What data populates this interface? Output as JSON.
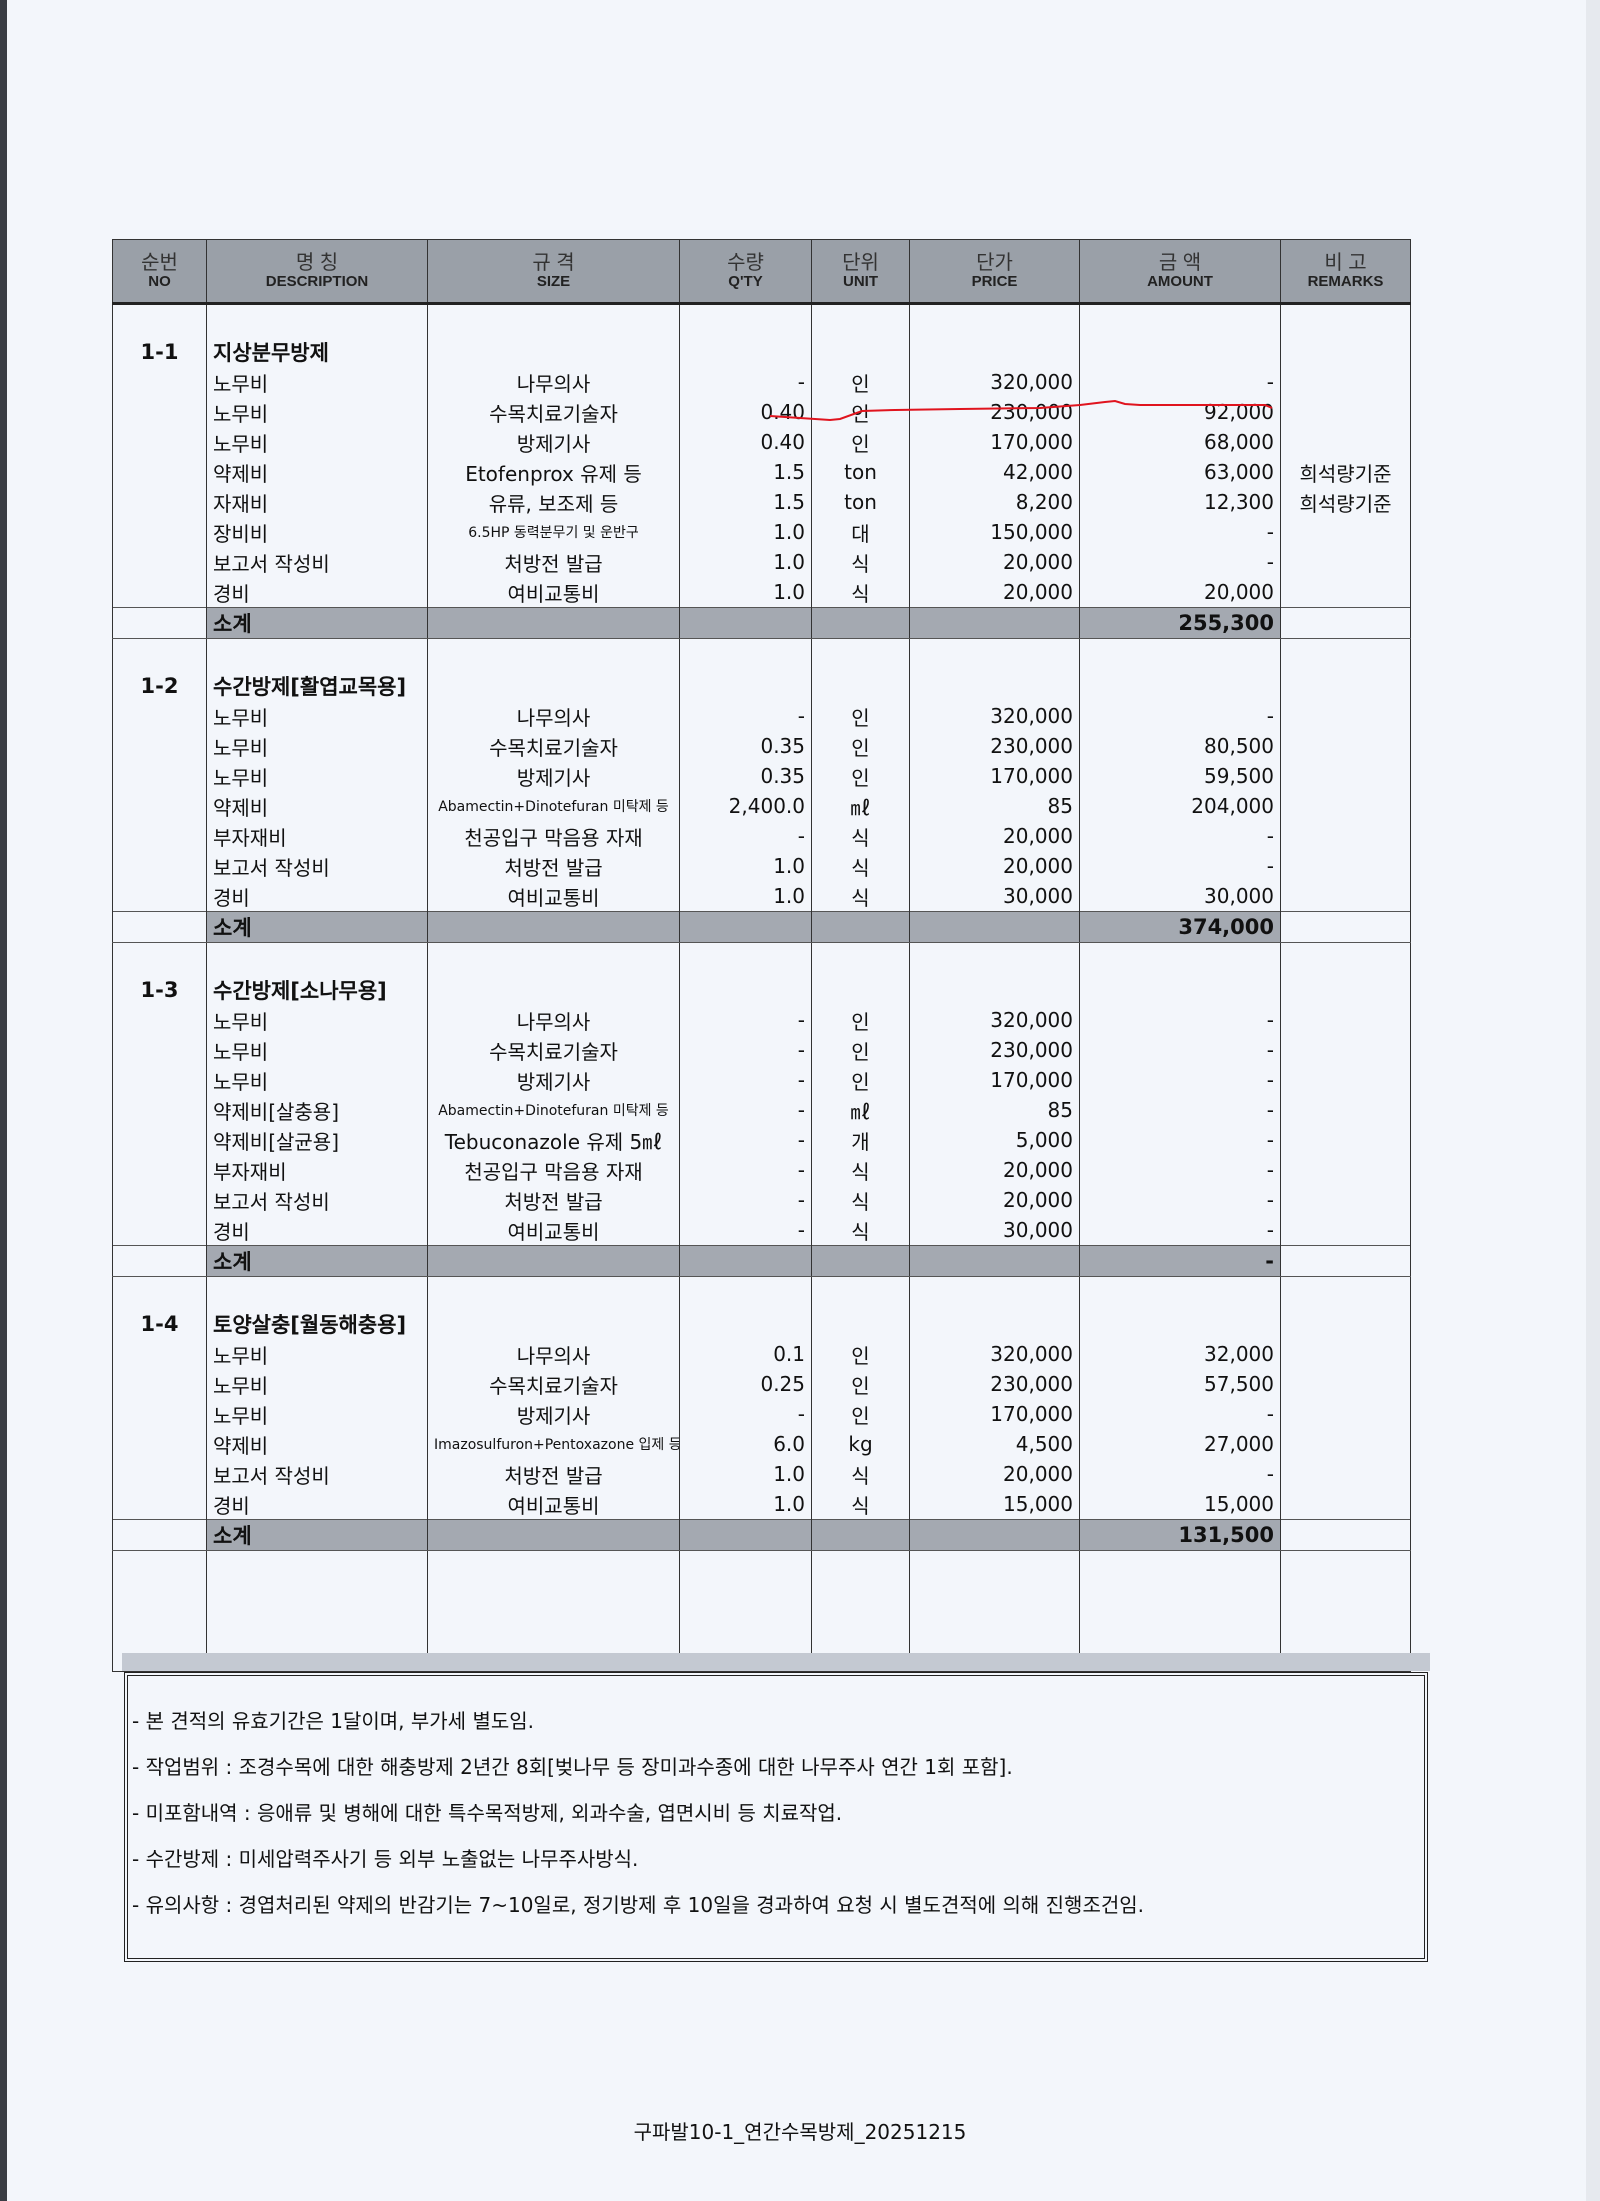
{
  "header": {
    "cols": [
      {
        "ko": "순번",
        "en": "NO"
      },
      {
        "ko": "명 칭",
        "en": "DESCRIPTION"
      },
      {
        "ko": "규 격",
        "en": "SIZE"
      },
      {
        "ko": "수량",
        "en": "Q'TY"
      },
      {
        "ko": "단위",
        "en": "UNIT"
      },
      {
        "ko": "단가",
        "en": "PRICE"
      },
      {
        "ko": "금 액",
        "en": "AMOUNT"
      },
      {
        "ko": "비 고",
        "en": "REMARKS"
      }
    ]
  },
  "sections": [
    {
      "no": "1-1",
      "title": "지상분무방제",
      "subtotal_label": "소계",
      "subtotal": "255,300",
      "items": [
        {
          "desc": "노무비",
          "size": "나무의사",
          "qty": "-",
          "unit": "인",
          "price": "320,000",
          "amount": "-",
          "remark": ""
        },
        {
          "desc": "노무비",
          "size": "수목치료기술자",
          "qty": "0.40",
          "unit": "인",
          "price": "230,000",
          "amount": "92,000",
          "remark": ""
        },
        {
          "desc": "노무비",
          "size": "방제기사",
          "qty": "0.40",
          "unit": "인",
          "price": "170,000",
          "amount": "68,000",
          "remark": ""
        },
        {
          "desc": "약제비",
          "size": "Etofenprox 유제 등",
          "qty": "1.5",
          "unit": "ton",
          "price": "42,000",
          "amount": "63,000",
          "remark": "희석량기준"
        },
        {
          "desc": "자재비",
          "size": "유류, 보조제 등",
          "qty": "1.5",
          "unit": "ton",
          "price": "8,200",
          "amount": "12,300",
          "remark": "희석량기준"
        },
        {
          "desc": "장비비",
          "size": "6.5HP 동력분무기 및 운반구",
          "qty": "1.0",
          "unit": "대",
          "price": "150,000",
          "amount": "-",
          "remark": "",
          "small": true
        },
        {
          "desc": "보고서 작성비",
          "size": "처방전 발급",
          "qty": "1.0",
          "unit": "식",
          "price": "20,000",
          "amount": "-",
          "remark": ""
        },
        {
          "desc": "경비",
          "size": "여비교통비",
          "qty": "1.0",
          "unit": "식",
          "price": "20,000",
          "amount": "20,000",
          "remark": ""
        }
      ]
    },
    {
      "no": "1-2",
      "title": "수간방제[활엽교목용]",
      "subtotal_label": "소계",
      "subtotal": "374,000",
      "items": [
        {
          "desc": "노무비",
          "size": "나무의사",
          "qty": "-",
          "unit": "인",
          "price": "320,000",
          "amount": "-",
          "remark": ""
        },
        {
          "desc": "노무비",
          "size": "수목치료기술자",
          "qty": "0.35",
          "unit": "인",
          "price": "230,000",
          "amount": "80,500",
          "remark": ""
        },
        {
          "desc": "노무비",
          "size": "방제기사",
          "qty": "0.35",
          "unit": "인",
          "price": "170,000",
          "amount": "59,500",
          "remark": ""
        },
        {
          "desc": "약제비",
          "size": "Abamectin+Dinotefuran 미탁제 등",
          "qty": "2,400.0",
          "unit": "㎖",
          "price": "85",
          "amount": "204,000",
          "remark": "",
          "small": true
        },
        {
          "desc": "부자재비",
          "size": "천공입구 막음용 자재",
          "qty": "-",
          "unit": "식",
          "price": "20,000",
          "amount": "-",
          "remark": ""
        },
        {
          "desc": "보고서 작성비",
          "size": "처방전 발급",
          "qty": "1.0",
          "unit": "식",
          "price": "20,000",
          "amount": "-",
          "remark": ""
        },
        {
          "desc": "경비",
          "size": "여비교통비",
          "qty": "1.0",
          "unit": "식",
          "price": "30,000",
          "amount": "30,000",
          "remark": ""
        }
      ]
    },
    {
      "no": "1-3",
      "title": "수간방제[소나무용]",
      "subtotal_label": "소계",
      "subtotal": "-",
      "items": [
        {
          "desc": "노무비",
          "size": "나무의사",
          "qty": "-",
          "unit": "인",
          "price": "320,000",
          "amount": "-",
          "remark": ""
        },
        {
          "desc": "노무비",
          "size": "수목치료기술자",
          "qty": "-",
          "unit": "인",
          "price": "230,000",
          "amount": "-",
          "remark": ""
        },
        {
          "desc": "노무비",
          "size": "방제기사",
          "qty": "-",
          "unit": "인",
          "price": "170,000",
          "amount": "-",
          "remark": ""
        },
        {
          "desc": "약제비[살충용]",
          "size": "Abamectin+Dinotefuran 미탁제 등",
          "qty": "-",
          "unit": "㎖",
          "price": "85",
          "amount": "-",
          "remark": "",
          "small": true
        },
        {
          "desc": "약제비[살균용]",
          "size": "Tebuconazole 유제 5㎖",
          "qty": "-",
          "unit": "개",
          "price": "5,000",
          "amount": "-",
          "remark": ""
        },
        {
          "desc": "부자재비",
          "size": "천공입구 막음용 자재",
          "qty": "-",
          "unit": "식",
          "price": "20,000",
          "amount": "-",
          "remark": ""
        },
        {
          "desc": "보고서 작성비",
          "size": "처방전 발급",
          "qty": "-",
          "unit": "식",
          "price": "20,000",
          "amount": "-",
          "remark": ""
        },
        {
          "desc": "경비",
          "size": "여비교통비",
          "qty": "-",
          "unit": "식",
          "price": "30,000",
          "amount": "-",
          "remark": ""
        }
      ]
    },
    {
      "no": "1-4",
      "title": "토양살충[월동해충용]",
      "subtotal_label": "소계",
      "subtotal": "131,500",
      "items": [
        {
          "desc": "노무비",
          "size": "나무의사",
          "qty": "0.1",
          "unit": "인",
          "price": "320,000",
          "amount": "32,000",
          "remark": ""
        },
        {
          "desc": "노무비",
          "size": "수목치료기술자",
          "qty": "0.25",
          "unit": "인",
          "price": "230,000",
          "amount": "57,500",
          "remark": ""
        },
        {
          "desc": "노무비",
          "size": "방제기사",
          "qty": "-",
          "unit": "인",
          "price": "170,000",
          "amount": "-",
          "remark": ""
        },
        {
          "desc": "약제비",
          "size": "Imazosulfuron+Pentoxazone 입제 등",
          "qty": "6.0",
          "unit": "kg",
          "price": "4,500",
          "amount": "27,000",
          "remark": "",
          "small": true
        },
        {
          "desc": "보고서 작성비",
          "size": "처방전 발급",
          "qty": "1.0",
          "unit": "식",
          "price": "20,000",
          "amount": "-",
          "remark": ""
        },
        {
          "desc": "경비",
          "size": "여비교통비",
          "qty": "1.0",
          "unit": "식",
          "price": "15,000",
          "amount": "15,000",
          "remark": ""
        }
      ]
    }
  ],
  "notes": [
    "- 본 견적의 유효기간은 1달이며, 부가세 별도임.",
    "- 작업범위 : 조경수목에 대한 해충방제 2년간 8회[벚나무 등 장미과수종에 대한 나무주사 연간 1회 포함].",
    "- 미포함내역 : 응애류 및 병해에 대한 특수목적방제, 외과수술, 엽면시비 등 치료작업.",
    "- 수간방제 : 미세압력주사기 등 외부 노출없는 나무주사방식.",
    "- 유의사항 : 경엽처리된 약제의 반감기는 7~10일로, 정기방제 후 10일을 경과하여 요청 시 별도견적에 의해 진행조건임."
  ],
  "footer": "구파발10-1_연간수목방제_20251215",
  "colors": {
    "header_bg": "#9aa0a8",
    "annotation_red": "#e0141e",
    "page_bg": "#f3f6fb"
  }
}
